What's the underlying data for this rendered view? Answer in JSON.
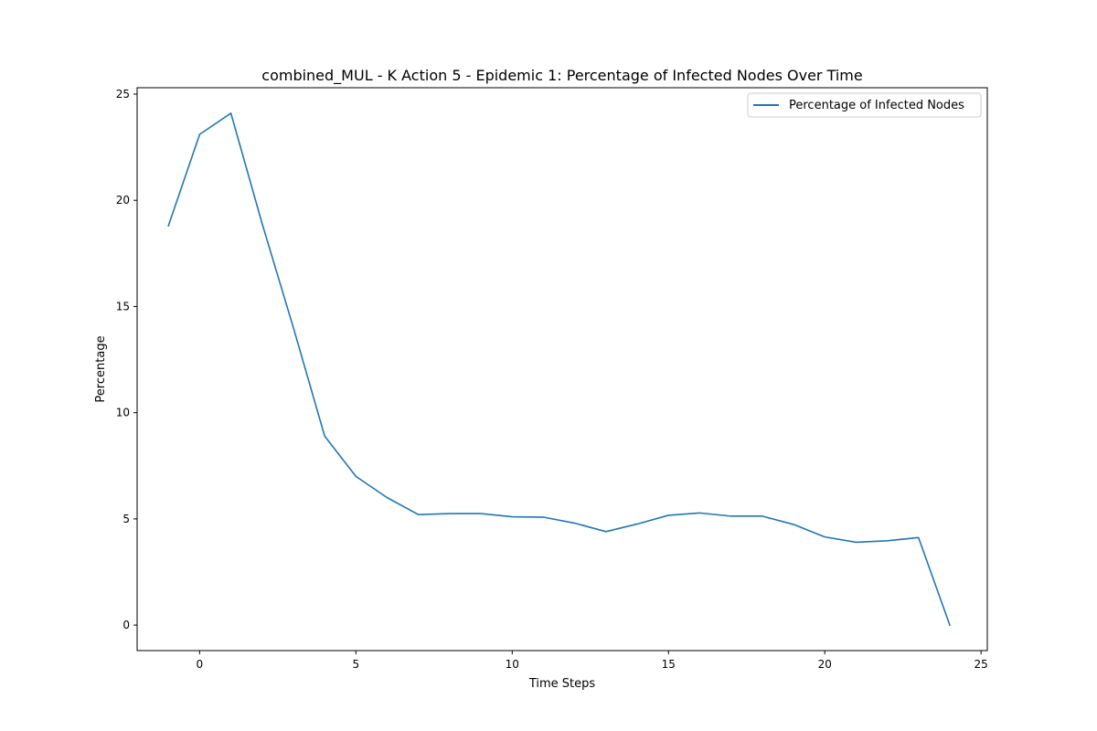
{
  "chart_data": {
    "type": "line",
    "title": "combined_MUL - K Action 5 - Epidemic 1: Percentage of Infected Nodes Over Time",
    "xlabel": "Time Steps",
    "ylabel": "Percentage",
    "xlim": [
      -2,
      25.2
    ],
    "ylim": [
      -1.2,
      25.3
    ],
    "xticks": [
      0,
      5,
      10,
      15,
      20,
      25
    ],
    "yticks": [
      0,
      5,
      10,
      15,
      20,
      25
    ],
    "grid": false,
    "legend_position": "top-right",
    "series": [
      {
        "name": "Percentage of Infected Nodes",
        "color": "#1f77b4",
        "x": [
          -1,
          0,
          1,
          2,
          3,
          4,
          5,
          6,
          7,
          8,
          9,
          10,
          11,
          12,
          13,
          14,
          15,
          16,
          17,
          18,
          19,
          20,
          21,
          22,
          23,
          24
        ],
        "y": [
          18.8,
          23.1,
          24.1,
          18.9,
          14.0,
          8.9,
          7.0,
          6.0,
          5.2,
          5.25,
          5.25,
          5.1,
          5.08,
          4.8,
          4.4,
          4.76,
          5.17,
          5.28,
          5.13,
          5.13,
          4.74,
          4.15,
          3.9,
          3.97,
          4.12,
          0.0
        ]
      }
    ]
  }
}
